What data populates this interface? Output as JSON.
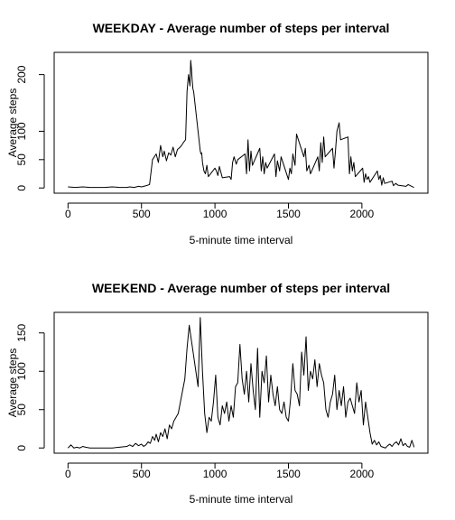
{
  "chart_data": [
    {
      "type": "line",
      "title": "WEEKDAY - Average number of steps per interval",
      "xlabel": "5-minute time interval",
      "ylabel": "Average steps",
      "xlim": [
        0,
        2355
      ],
      "ylim": [
        0,
        230
      ],
      "xticks": [
        0,
        500,
        1000,
        1500,
        2000
      ],
      "yticks": [
        0,
        50,
        100,
        200
      ],
      "grid": false,
      "color": "#000000",
      "x": [
        0,
        50,
        100,
        150,
        200,
        250,
        300,
        350,
        400,
        420,
        450,
        480,
        500,
        530,
        555,
        575,
        600,
        615,
        630,
        645,
        655,
        670,
        685,
        700,
        715,
        730,
        745,
        755,
        770,
        785,
        800,
        810,
        820,
        830,
        835,
        840,
        845,
        850,
        855,
        900,
        905,
        910,
        915,
        925,
        935,
        945,
        955,
        1000,
        1010,
        1020,
        1030,
        1040,
        1050,
        1100,
        1110,
        1120,
        1130,
        1145,
        1155,
        1205,
        1215,
        1225,
        1235,
        1245,
        1255,
        1305,
        1315,
        1325,
        1335,
        1345,
        1355,
        1405,
        1415,
        1425,
        1440,
        1450,
        1500,
        1510,
        1520,
        1530,
        1545,
        1555,
        1605,
        1615,
        1625,
        1640,
        1650,
        1700,
        1710,
        1720,
        1730,
        1740,
        1750,
        1800,
        1810,
        1820,
        1830,
        1845,
        1855,
        1905,
        1915,
        1925,
        1935,
        1945,
        1955,
        2005,
        2015,
        2025,
        2035,
        2045,
        2055,
        2105,
        2115,
        2125,
        2135,
        2145,
        2155,
        2205,
        2215,
        2230,
        2245,
        2300,
        2315,
        2330,
        2345,
        2355
      ],
      "y": [
        2,
        1,
        2,
        1,
        1,
        1,
        2,
        1,
        1,
        2,
        1,
        3,
        2,
        4,
        6,
        50,
        60,
        45,
        75,
        55,
        65,
        48,
        62,
        58,
        72,
        55,
        68,
        70,
        74,
        80,
        85,
        170,
        200,
        180,
        225,
        210,
        190,
        175,
        170,
        65,
        60,
        62,
        45,
        30,
        25,
        40,
        20,
        35,
        30,
        22,
        38,
        28,
        18,
        20,
        15,
        45,
        55,
        42,
        50,
        60,
        25,
        85,
        30,
        65,
        40,
        70,
        30,
        55,
        25,
        45,
        35,
        60,
        20,
        48,
        30,
        55,
        15,
        35,
        25,
        60,
        40,
        95,
        55,
        70,
        30,
        40,
        25,
        55,
        30,
        80,
        45,
        90,
        55,
        70,
        35,
        65,
        100,
        115,
        85,
        90,
        25,
        55,
        30,
        45,
        20,
        35,
        10,
        25,
        15,
        20,
        10,
        30,
        15,
        22,
        5,
        18,
        8,
        12,
        4,
        8,
        5,
        3,
        6,
        4,
        2,
        1
      ]
    },
    {
      "type": "line",
      "title": "WEEKEND - Average number of steps per interval",
      "xlabel": "5-minute time interval",
      "ylabel": "Average steps",
      "xlim": [
        0,
        2355
      ],
      "ylim": [
        0,
        170
      ],
      "xticks": [
        0,
        500,
        1000,
        1500,
        2000
      ],
      "yticks": [
        0,
        50,
        100,
        150
      ],
      "grid": false,
      "color": "#000000",
      "x": [
        0,
        20,
        40,
        60,
        80,
        100,
        120,
        150,
        200,
        250,
        300,
        350,
        400,
        420,
        440,
        460,
        480,
        500,
        515,
        530,
        545,
        560,
        575,
        590,
        600,
        615,
        630,
        645,
        660,
        675,
        690,
        705,
        720,
        735,
        750,
        765,
        780,
        795,
        810,
        825,
        840,
        855,
        870,
        885,
        900,
        915,
        930,
        945,
        960,
        975,
        990,
        1005,
        1020,
        1035,
        1050,
        1065,
        1080,
        1095,
        1110,
        1125,
        1140,
        1155,
        1170,
        1185,
        1200,
        1215,
        1230,
        1245,
        1260,
        1275,
        1290,
        1305,
        1320,
        1335,
        1350,
        1365,
        1380,
        1395,
        1410,
        1425,
        1440,
        1455,
        1470,
        1485,
        1500,
        1515,
        1530,
        1545,
        1560,
        1575,
        1590,
        1605,
        1620,
        1635,
        1650,
        1665,
        1680,
        1695,
        1710,
        1725,
        1740,
        1755,
        1770,
        1785,
        1800,
        1815,
        1830,
        1845,
        1860,
        1875,
        1890,
        1905,
        1920,
        1935,
        1950,
        1965,
        1980,
        1995,
        2010,
        2025,
        2040,
        2055,
        2070,
        2085,
        2100,
        2115,
        2130,
        2145,
        2160,
        2175,
        2190,
        2205,
        2220,
        2235,
        2250,
        2265,
        2280,
        2295,
        2310,
        2325,
        2340,
        2355
      ],
      "y": [
        0,
        4,
        0,
        1,
        0,
        2,
        1,
        0,
        0,
        0,
        0,
        1,
        2,
        4,
        2,
        6,
        3,
        5,
        2,
        4,
        8,
        6,
        15,
        10,
        18,
        8,
        20,
        15,
        25,
        12,
        30,
        25,
        35,
        40,
        45,
        60,
        75,
        90,
        130,
        160,
        140,
        120,
        100,
        80,
        170,
        100,
        45,
        20,
        40,
        35,
        60,
        95,
        40,
        30,
        55,
        45,
        60,
        35,
        55,
        40,
        80,
        85,
        135,
        90,
        70,
        100,
        60,
        110,
        75,
        50,
        130,
        40,
        100,
        85,
        120,
        60,
        95,
        70,
        55,
        80,
        50,
        45,
        60,
        40,
        35,
        65,
        110,
        75,
        70,
        55,
        125,
        95,
        145,
        75,
        100,
        90,
        115,
        80,
        110,
        95,
        85,
        50,
        40,
        60,
        70,
        95,
        50,
        75,
        55,
        80,
        40,
        60,
        65,
        55,
        45,
        85,
        60,
        75,
        30,
        60,
        40,
        20,
        5,
        10,
        4,
        8,
        2,
        1,
        0,
        3,
        5,
        2,
        6,
        8,
        4,
        12,
        3,
        6,
        2,
        1,
        10,
        1
      ]
    }
  ]
}
